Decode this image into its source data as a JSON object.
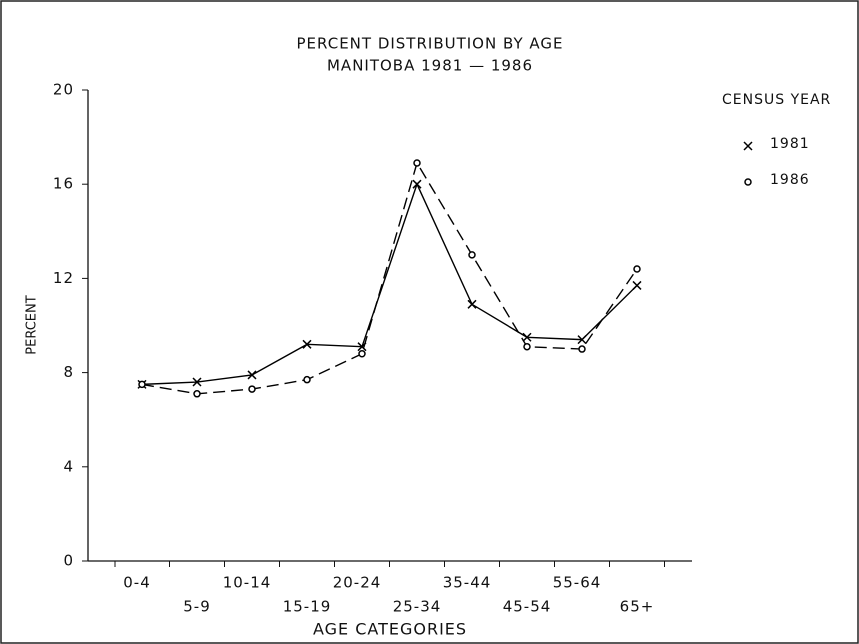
{
  "chart_data": {
    "type": "line",
    "title": [
      "PERCENT DISTRIBUTION BY AGE",
      "MANITOBA  1981 — 1986"
    ],
    "x_label": "AGE CATEGORIES",
    "y_label": "PERCENT",
    "legend_title": "CENSUS YEAR",
    "categories": [
      "0-4",
      "5-9",
      "10-14",
      "15-19",
      "20-24",
      "25-34",
      "35-44",
      "45-54",
      "55-64",
      "65+"
    ],
    "series": [
      {
        "name": "1981",
        "color": "#000000",
        "marker": "x",
        "line_style": "solid",
        "values": [
          7.5,
          7.6,
          7.9,
          9.2,
          9.1,
          16.0,
          10.9,
          9.5,
          9.4,
          11.7
        ]
      },
      {
        "name": "1986",
        "color": "#000000",
        "marker": "o",
        "line_style": "dashed",
        "values": [
          7.5,
          7.1,
          7.3,
          7.7,
          8.8,
          16.9,
          13.0,
          9.1,
          9.0,
          12.4
        ]
      }
    ],
    "ylim": [
      0,
      20
    ],
    "yticks": [
      0,
      4,
      8,
      12,
      16,
      20
    ],
    "grid": false,
    "legend": "right"
  }
}
